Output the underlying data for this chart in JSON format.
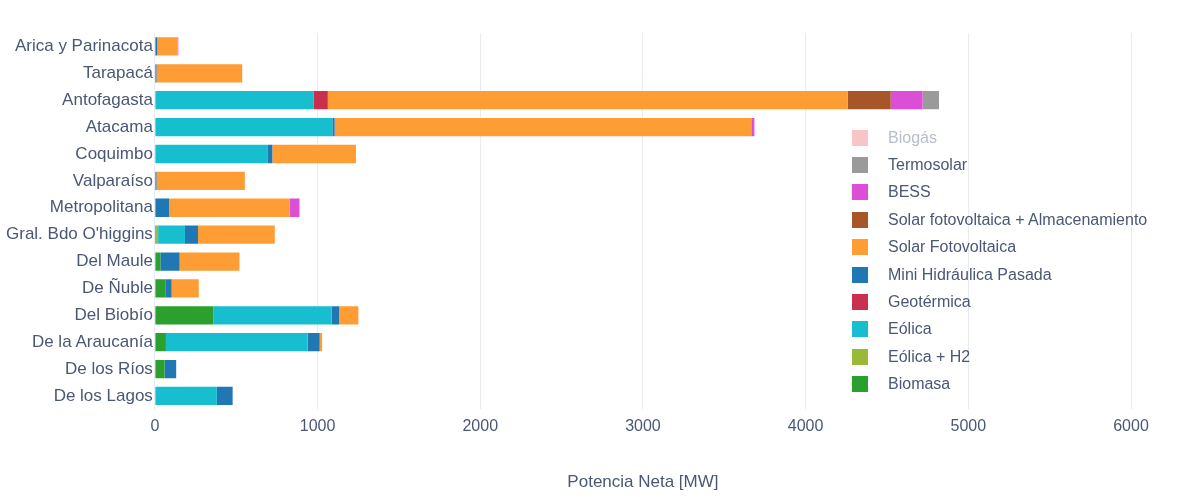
{
  "chart_data": {
    "type": "bar",
    "orientation": "horizontal",
    "stacked": true,
    "xlabel": "Potencia Neta [MW]",
    "categories": [
      "Arica y Parinacota",
      "Tarapacá",
      "Antofagasta",
      "Atacama",
      "Coquimbo",
      "Valparaíso",
      "Metropolitana",
      "Gral. Bdo O'higgins",
      "Del Maule",
      "De Ñuble",
      "Del Biobío",
      "De la Araucanía",
      "De los Ríos",
      "De los Lagos"
    ],
    "series": [
      {
        "name": "Biomasa",
        "color": "#2ca02c",
        "values": [
          null,
          null,
          null,
          null,
          null,
          null,
          null,
          8,
          34,
          67,
          360,
          68,
          59,
          null
        ]
      },
      {
        "name": "Eólica + H2",
        "color": "#9ab936",
        "values": [
          null,
          null,
          null,
          null,
          null,
          null,
          null,
          12,
          null,
          null,
          null,
          null,
          null,
          null
        ]
      },
      {
        "name": "Eólica",
        "color": "#17becf",
        "values": [
          null,
          null,
          977,
          1091,
          695,
          null,
          null,
          165,
          null,
          null,
          727,
          871,
          null,
          381
        ]
      },
      {
        "name": "Geotérmica",
        "color": "#c9304f",
        "values": [
          null,
          null,
          86,
          null,
          null,
          null,
          null,
          null,
          null,
          null,
          null,
          null,
          null,
          null
        ]
      },
      {
        "name": "Mini Hidráulica Pasada",
        "color": "#1f77b4",
        "values": [
          15,
          10,
          null,
          14,
          27,
          10,
          88,
          80,
          118,
          36,
          46,
          74,
          72,
          97
        ]
      },
      {
        "name": "Solar Fotovoltaica",
        "color": "#ff9d35",
        "values": [
          124,
          527,
          3195,
          2561,
          514,
          543,
          740,
          472,
          368,
          167,
          118,
          15,
          null,
          null
        ]
      },
      {
        "name": "Solar fotovoltaica + Almacenamiento",
        "color": "#a65628",
        "values": [
          null,
          null,
          265,
          null,
          null,
          null,
          null,
          null,
          null,
          null,
          null,
          null,
          null,
          null
        ]
      },
      {
        "name": "BESS",
        "color": "#dd4ed6",
        "values": [
          5,
          null,
          196,
          19,
          null,
          null,
          61,
          null,
          null,
          null,
          null,
          null,
          null,
          null
        ]
      },
      {
        "name": "Termosolar",
        "color": "#9a9a9a",
        "values": [
          null,
          null,
          101,
          null,
          null,
          null,
          null,
          null,
          null,
          null,
          null,
          null,
          null,
          null
        ]
      },
      {
        "name": "Biogás",
        "color": "#f08c8c",
        "values": [
          null,
          null,
          null,
          null,
          null,
          null,
          null,
          null,
          null,
          null,
          null,
          null,
          null,
          null
        ]
      }
    ],
    "xlim": [
      0,
      6000
    ],
    "xticks": [
      0,
      1000,
      2000,
      3000,
      4000,
      5000,
      6000
    ],
    "grid": "x",
    "legend": "right"
  }
}
